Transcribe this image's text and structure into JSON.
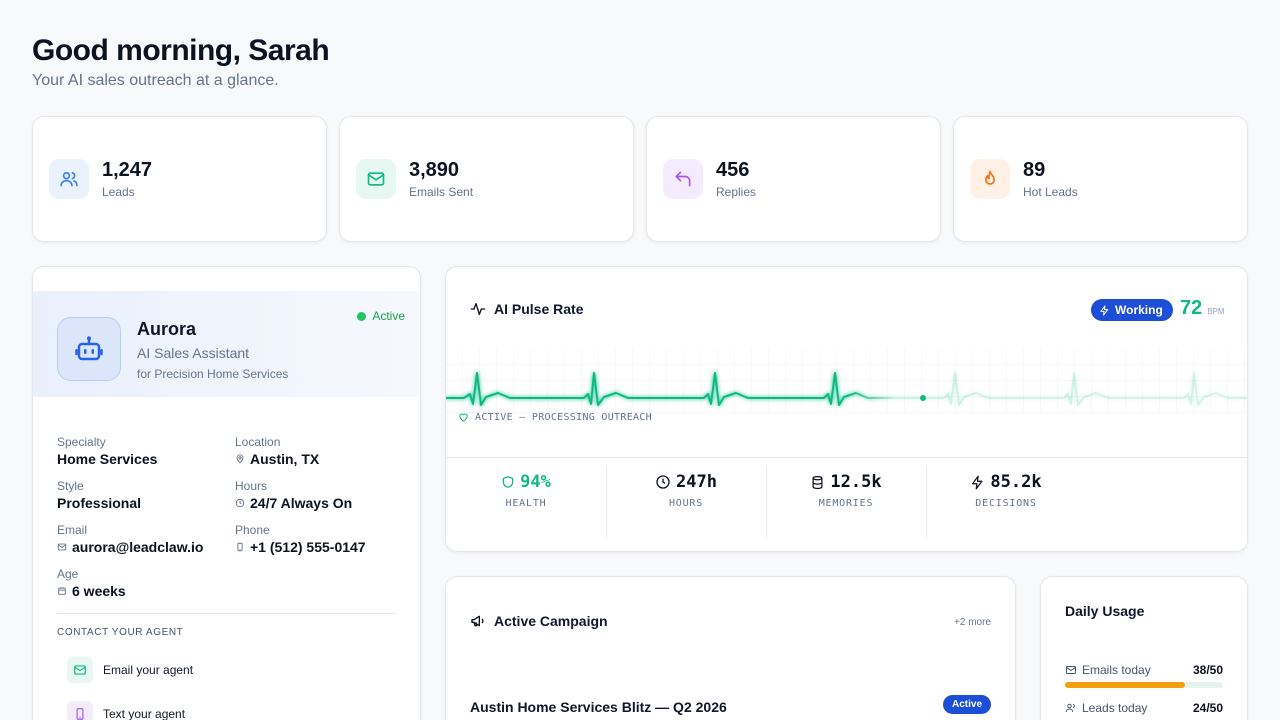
{
  "header": {
    "greeting": "Good morning, Sarah",
    "subtitle": "Your AI sales outreach at a glance."
  },
  "stats": [
    {
      "value": "1,247",
      "label": "Leads",
      "icon": "users-icon",
      "color": "#3b82f6",
      "bg": "#eaf2fe"
    },
    {
      "value": "3,890",
      "label": "Emails Sent",
      "icon": "mail-icon",
      "color": "#10b981",
      "bg": "#e6f8f1"
    },
    {
      "value": "456",
      "label": "Replies",
      "icon": "reply-icon",
      "color": "#a855f7",
      "bg": "#f4ecfe"
    },
    {
      "value": "89",
      "label": "Hot Leads",
      "icon": "flame-icon",
      "color": "#f97316",
      "bg": "#fff1e6"
    }
  ],
  "agent": {
    "name": "Aurora",
    "role": "AI Sales Assistant",
    "for": "for Precision Home Services",
    "status": "Active",
    "fields": {
      "specialty_label": "Specialty",
      "specialty": "Home Services",
      "location_label": "Location",
      "location": "Austin, TX",
      "style_label": "Style",
      "style": "Professional",
      "hours_label": "Hours",
      "hours": "24/7 Always On",
      "email_label": "Email",
      "email": "aurora@leadclaw.io",
      "phone_label": "Phone",
      "phone": "+1 (512) 555-0147",
      "age_label": "Age",
      "age": "6 weeks"
    },
    "contact_title": "CONTACT YOUR AGENT",
    "contact_email": "Email your agent",
    "contact_text": "Text your agent"
  },
  "pulse": {
    "title": "AI Pulse Rate",
    "working": "Working",
    "bpm": "72",
    "bpm_unit": "BPM",
    "status": "ACTIVE — PROCESSING OUTREACH",
    "metrics": [
      {
        "value": "94%",
        "label": "HEALTH",
        "icon": "shield-icon"
      },
      {
        "value": "247h",
        "label": "HOURS",
        "icon": "clock-icon"
      },
      {
        "value": "12.5k",
        "label": "MEMORIES",
        "icon": "database-icon"
      },
      {
        "value": "85.2k",
        "label": "DECISIONS",
        "icon": "zap-icon"
      }
    ]
  },
  "campaign": {
    "title": "Active Campaign",
    "more": "+2 more",
    "name": "Austin Home Services Blitz — Q2 2026",
    "badge": "Active"
  },
  "usage": {
    "title": "Daily Usage",
    "rows": [
      {
        "label": "Emails today",
        "value": "38/50",
        "fraction": 0.76,
        "color": "#f59e0b",
        "icon": "mail-icon"
      },
      {
        "label": "Leads today",
        "value": "24/50",
        "fraction": 0.48,
        "color": "#3b82f6",
        "icon": "users-icon"
      }
    ]
  }
}
